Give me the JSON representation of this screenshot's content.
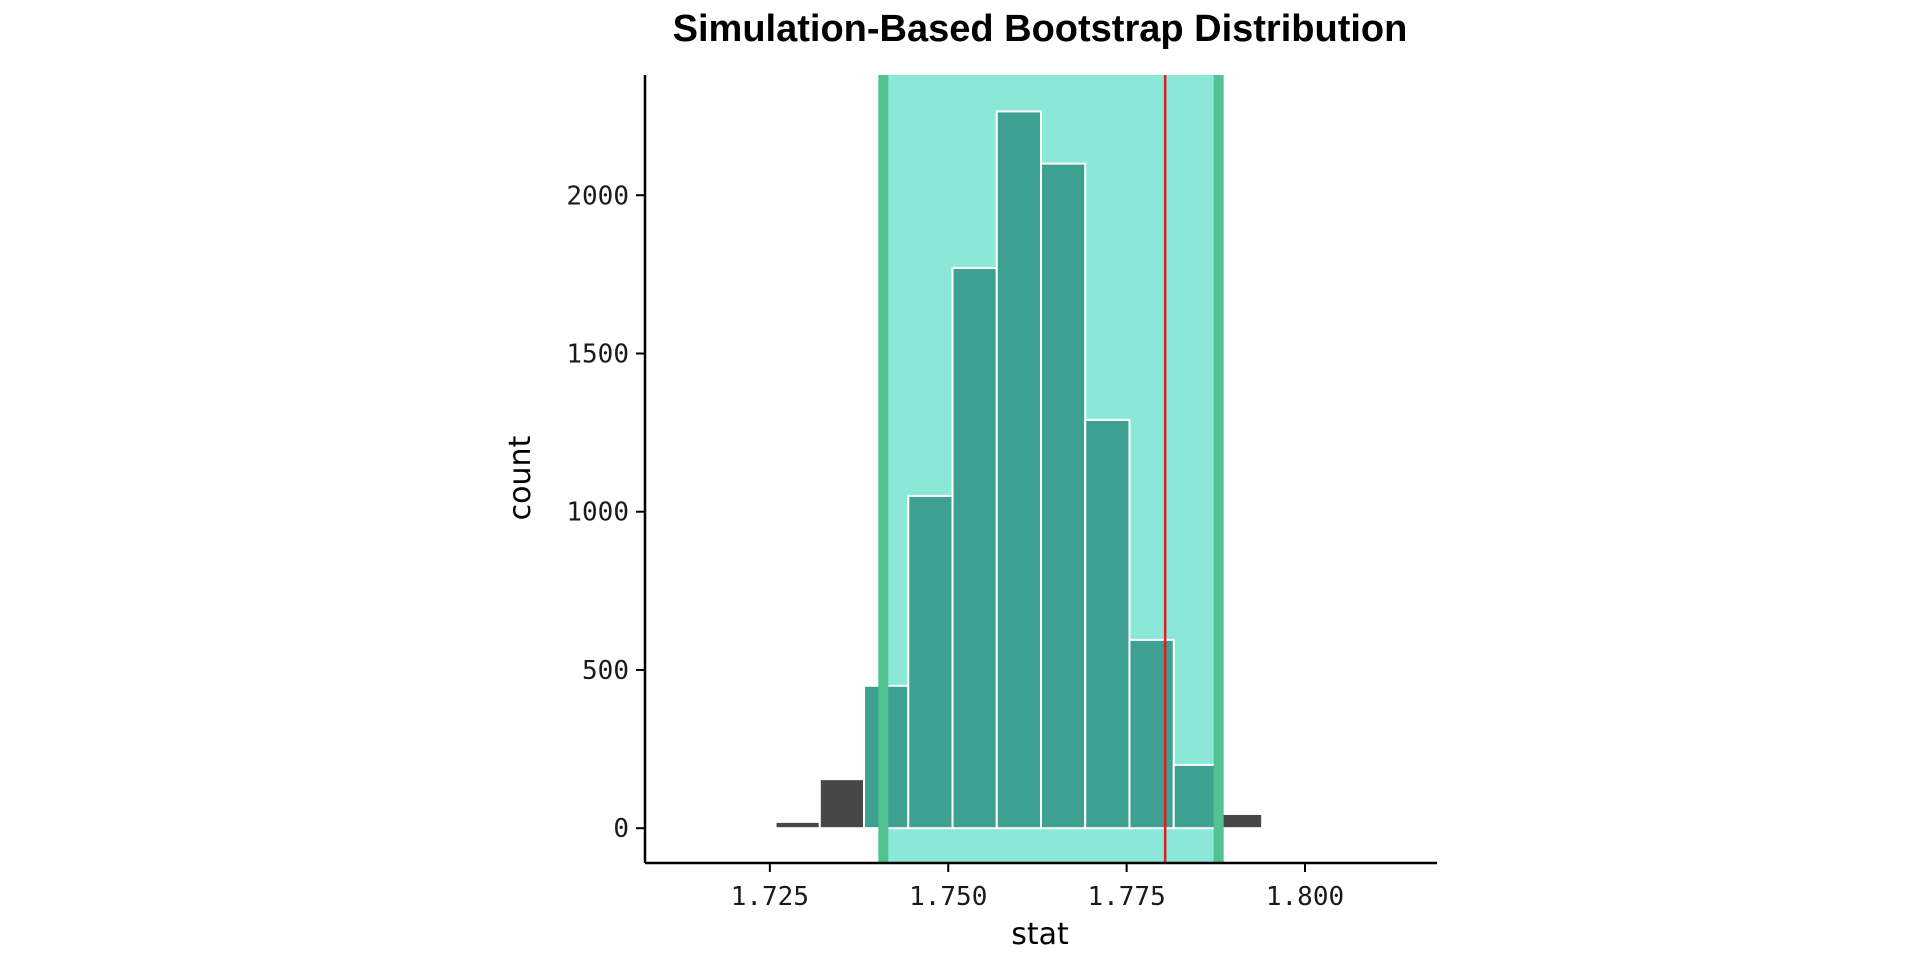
{
  "chart_data": {
    "type": "bar",
    "title": "Simulation-Based Bootstrap Distribution",
    "xlabel": "stat",
    "ylabel": "count",
    "xlim": [
      1.7075,
      1.8185
    ],
    "ylim": [
      -110,
      2380
    ],
    "x_ticks": [
      1.725,
      1.75,
      1.775,
      1.8
    ],
    "x_tick_labels": [
      "1.725",
      "1.750",
      "1.775",
      "1.800"
    ],
    "y_ticks": [
      0,
      500,
      1000,
      1500,
      2000
    ],
    "y_tick_labels": [
      "0",
      "500",
      "1000",
      "1500",
      "2000"
    ],
    "bin_width": 0.0062,
    "bin_centers": [
      1.7289,
      1.7351,
      1.7413,
      1.7475,
      1.7537,
      1.7599,
      1.7661,
      1.7723,
      1.7785,
      1.7847,
      1.7909,
      1.7971,
      1.8033
    ],
    "counts": [
      20,
      155,
      450,
      1050,
      1770,
      2265,
      2100,
      1290,
      595,
      200,
      45,
      5,
      0
    ],
    "ci_lower": 1.7409,
    "ci_upper": 1.7879,
    "observed_stat": 1.7804,
    "grid": false,
    "colors": {
      "bar_outside": "#474747",
      "bar_inside": "#3ea090",
      "bar_edge": "#ffffff",
      "ci_shade": "#8be8d9",
      "ci_lines": "#52c290",
      "observed_line": "#e41a1c",
      "axis": "#000000"
    }
  }
}
